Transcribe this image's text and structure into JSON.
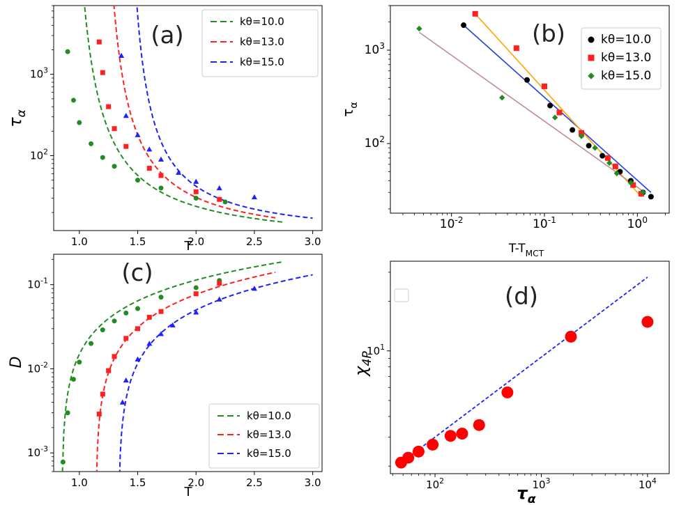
{
  "chart_data": [
    {
      "panel": "a",
      "type": "scatter",
      "label": "(a)",
      "xlabel": "T",
      "ylabel": "τ_α",
      "xscale": "linear",
      "yscale": "log",
      "xlim": [
        0.78,
        3.08
      ],
      "ylim": [
        12,
        7000
      ],
      "xticks": [
        1.0,
        1.5,
        2.0,
        2.5,
        3.0
      ],
      "xticklabels": [
        "1.0",
        "1.5",
        "2.0",
        "2.5",
        "3.0"
      ],
      "yticks": [
        100,
        1000
      ],
      "yticklabels": [
        "10^2",
        "10^3"
      ],
      "legend_position": "top-right",
      "series": [
        {
          "name": "kθ=10.0",
          "color": "#228b22",
          "marker": "circle",
          "points": [
            [
              0.9,
              1900
            ],
            [
              0.95,
              480
            ],
            [
              1.0,
              255
            ],
            [
              1.1,
              140
            ],
            [
              1.2,
              95
            ],
            [
              1.3,
              74
            ],
            [
              1.5,
              50
            ],
            [
              1.7,
              40
            ],
            [
              2.0,
              30
            ],
            [
              2.25,
              27
            ]
          ],
          "fit": {
            "a": 7.66,
            "b": 1.3,
            "t0": 0.854,
            "x_range": [
              0.895,
              2.75
            ]
          }
        },
        {
          "name": "kθ=13.0",
          "color": "#ff2020",
          "marker": "square",
          "points": [
            [
              1.17,
              2500
            ],
            [
              1.2,
              1050
            ],
            [
              1.25,
              400
            ],
            [
              1.3,
              215
            ],
            [
              1.4,
              130
            ],
            [
              1.6,
              70
            ],
            [
              1.7,
              57
            ],
            [
              2.0,
              36
            ],
            [
              2.2,
              29
            ]
          ],
          "fit": {
            "a": 8.16,
            "b": 1.16,
            "t0": 1.125,
            "x_range": [
              1.155,
              2.68
            ]
          }
        },
        {
          "name": "kθ=15.0",
          "color": "#1f1fff",
          "marker": "triangle",
          "points": [
            [
              1.36,
              1700
            ],
            [
              1.4,
              310
            ],
            [
              1.5,
              180
            ],
            [
              1.6,
              120
            ],
            [
              1.7,
              90
            ],
            [
              1.85,
              62
            ],
            [
              2.0,
              48
            ],
            [
              2.2,
              40
            ],
            [
              2.5,
              31
            ]
          ],
          "fit": {
            "a": 9.42,
            "b": 0.98,
            "t0": 1.345,
            "x_range": [
              1.36,
              3.0
            ]
          }
        }
      ]
    },
    {
      "panel": "b",
      "type": "scatter",
      "label": "(b)",
      "xlabel": "T-T_MCT",
      "ylabel": "τ_α",
      "xscale": "log",
      "yscale": "log",
      "xlim": [
        0.0022,
        2.2
      ],
      "ylim": [
        18,
        3000
      ],
      "xticks": [
        0.01,
        0.1,
        1
      ],
      "xticklabels": [
        "10^-2",
        "10^-1",
        "10^0"
      ],
      "yticks": [
        100,
        1000
      ],
      "yticklabels": [
        "10^2",
        "10^3"
      ],
      "legend_position": "top-right",
      "series": [
        {
          "name": "kθ=10.0",
          "color": "#000000",
          "marker": "circle",
          "points": [
            [
              0.0135,
              1850
            ],
            [
              0.065,
              480
            ],
            [
              0.115,
              255
            ],
            [
              0.2,
              140
            ],
            [
              0.3,
              95
            ],
            [
              0.42,
              74
            ],
            [
              0.65,
              50
            ],
            [
              0.85,
              40
            ],
            [
              1.15,
              30
            ],
            [
              1.4,
              27
            ]
          ],
          "fit": {
            "color": "#1f3fe0",
            "x_range": [
              0.0135,
              1.4
            ],
            "y_range": [
              1850,
              30
            ]
          }
        },
        {
          "name": "kθ=13.0",
          "color": "#ff2020",
          "marker": "square",
          "points": [
            [
              0.018,
              2450
            ],
            [
              0.05,
              1050
            ],
            [
              0.1,
              410
            ],
            [
              0.145,
              215
            ],
            [
              0.25,
              130
            ],
            [
              0.48,
              70
            ],
            [
              0.58,
              57
            ],
            [
              0.9,
              36
            ],
            [
              1.1,
              29
            ]
          ],
          "fit": {
            "color": "#ffa500",
            "x_range": [
              0.018,
              1.1
            ],
            "y_range": [
              2450,
              27
            ]
          }
        },
        {
          "name": "kθ=15.0",
          "color": "#228b22",
          "marker": "diamond",
          "points": [
            [
              0.0045,
              1700
            ],
            [
              0.035,
              310
            ],
            [
              0.13,
              190
            ],
            [
              0.25,
              120
            ],
            [
              0.35,
              90
            ],
            [
              0.5,
              62
            ],
            [
              0.6,
              48
            ],
            [
              0.85,
              38
            ],
            [
              1.15,
              30
            ]
          ],
          "fit": {
            "color": "#bc8f8f",
            "x_range": [
              0.0045,
              1.2
            ],
            "y_range": [
              1550,
              30
            ]
          }
        }
      ]
    },
    {
      "panel": "c",
      "type": "scatter",
      "label": "(c)",
      "xlabel": "T",
      "ylabel": "D",
      "xscale": "linear",
      "yscale": "log",
      "xlim": [
        0.78,
        3.08
      ],
      "ylim": [
        0.0006,
        0.23
      ],
      "xticks": [
        1.0,
        1.5,
        2.0,
        2.5,
        3.0
      ],
      "xticklabels": [
        "1.0",
        "1.5",
        "2.0",
        "2.5",
        "3.0"
      ],
      "yticks": [
        0.001,
        0.01,
        0.1
      ],
      "yticklabels": [
        "10^-3",
        "10^-2",
        "10^-1"
      ],
      "legend_position": "bottom-right",
      "series": [
        {
          "name": "kθ=10.0",
          "color": "#228b22",
          "marker": "circle",
          "points": [
            [
              0.86,
              0.00078
            ],
            [
              0.9,
              0.003
            ],
            [
              0.95,
              0.0075
            ],
            [
              1.0,
              0.012
            ],
            [
              1.1,
              0.02
            ],
            [
              1.2,
              0.029
            ],
            [
              1.3,
              0.037
            ],
            [
              1.4,
              0.046
            ],
            [
              1.5,
              0.052
            ],
            [
              1.7,
              0.071
            ],
            [
              2.0,
              0.092
            ],
            [
              2.2,
              0.112
            ]
          ],
          "fit": {
            "c": 0.0986,
            "gamma": 1.0,
            "t0": 0.849,
            "x_range": [
              0.855,
              2.75
            ]
          }
        },
        {
          "name": "kθ=13.0",
          "color": "#ff2020",
          "marker": "square",
          "points": [
            [
              1.17,
              0.0029
            ],
            [
              1.2,
              0.005
            ],
            [
              1.25,
              0.0095
            ],
            [
              1.3,
              0.014
            ],
            [
              1.4,
              0.023
            ],
            [
              1.5,
              0.03
            ],
            [
              1.6,
              0.041
            ],
            [
              1.7,
              0.048
            ],
            [
              2.0,
              0.078
            ],
            [
              2.2,
              0.104
            ]
          ],
          "fit": {
            "c": 0.0896,
            "gamma": 1.04,
            "t0": 1.14,
            "x_range": [
              1.145,
              2.68
            ]
          }
        },
        {
          "name": "kθ=15.0",
          "color": "#1f1fff",
          "marker": "triangle",
          "points": [
            [
              1.37,
              0.004
            ],
            [
              1.4,
              0.0073
            ],
            [
              1.5,
              0.013
            ],
            [
              1.6,
              0.02
            ],
            [
              1.7,
              0.026
            ],
            [
              1.8,
              0.033
            ],
            [
              2.0,
              0.047
            ],
            [
              2.2,
              0.067
            ],
            [
              2.5,
              0.09
            ]
          ],
          "fit": {
            "c": 0.0768,
            "gamma": 1.05,
            "t0": 1.335,
            "x_range": [
              1.34,
              3.0
            ]
          }
        }
      ]
    },
    {
      "panel": "d",
      "type": "scatter",
      "label": "(d)",
      "xlabel": "τ_α",
      "ylabel": "χ_4P",
      "xscale": "log",
      "yscale": "log",
      "xlim": [
        38,
        16000
      ],
      "ylim": [
        1.8,
        35
      ],
      "xticks": [
        100,
        1000,
        10000
      ],
      "xticklabels": [
        "10^2",
        "10^3",
        "10^4"
      ],
      "yticks": [
        10
      ],
      "yticklabels": [
        "10^1"
      ],
      "legend_position": "top-left",
      "series": [
        {
          "name": "",
          "color": "#ff0000",
          "marker": "circle",
          "points": [
            [
              48,
              2.1
            ],
            [
              56,
              2.25
            ],
            [
              70,
              2.45
            ],
            [
              95,
              2.7
            ],
            [
              140,
              3.05
            ],
            [
              180,
              3.15
            ],
            [
              260,
              3.55
            ],
            [
              480,
              5.6
            ],
            [
              1900,
              12.2
            ],
            [
              10000,
              15.0
            ]
          ],
          "fit": {
            "color": "#1f1fff",
            "x_range": [
              48,
              10000
            ],
            "y_range": [
              2.1,
              28
            ]
          }
        }
      ]
    }
  ]
}
